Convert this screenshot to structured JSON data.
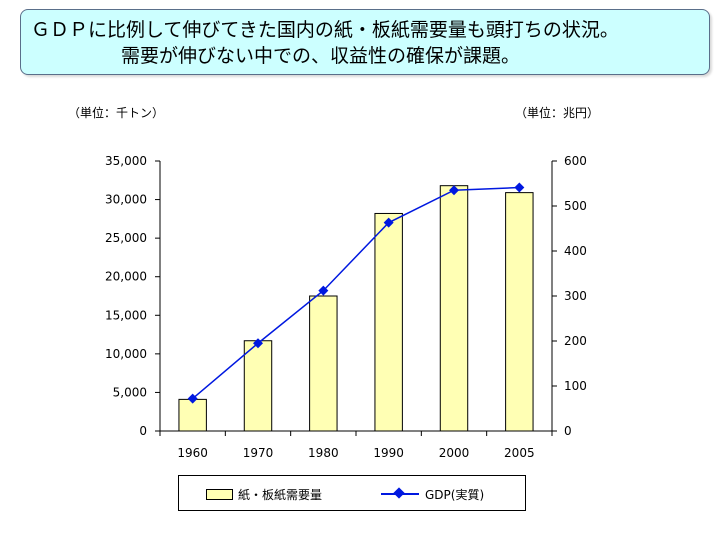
{
  "banner": {
    "line1": "ＧＤＰに比例して伸びてきた国内の紙・板紙需要量も頭打ちの状況。",
    "line2": "需要が伸びない中での、収益性の確保が課題。"
  },
  "units": {
    "left": "（単位：千トン）",
    "right": "（単位：兆円）"
  },
  "colors": {
    "bar_fill": "#ffffb4",
    "line": "#0018e0",
    "banner_bg": "#ccffff"
  },
  "chart_data": {
    "type": "bar+line",
    "categories": [
      "1960",
      "1970",
      "1980",
      "1990",
      "2000",
      "2005"
    ],
    "series": [
      {
        "name": "紙・板紙需要量",
        "type": "bar",
        "axis": "left",
        "values": [
          4100,
          11700,
          17500,
          28200,
          31800,
          30900
        ]
      },
      {
        "name": "GDP(実質)",
        "type": "line",
        "axis": "right",
        "values": [
          72,
          195,
          312,
          463,
          535,
          541
        ]
      }
    ],
    "y_left": {
      "min": 0,
      "max": 35000,
      "ticks": [
        "0",
        "5,000",
        "10,000",
        "15,000",
        "20,000",
        "25,000",
        "30,000",
        "35,000"
      ]
    },
    "y_right": {
      "min": 0,
      "max": 600,
      "ticks": [
        "0",
        "100",
        "200",
        "300",
        "400",
        "500",
        "600"
      ]
    },
    "grid": false,
    "legend_position": "bottom"
  }
}
